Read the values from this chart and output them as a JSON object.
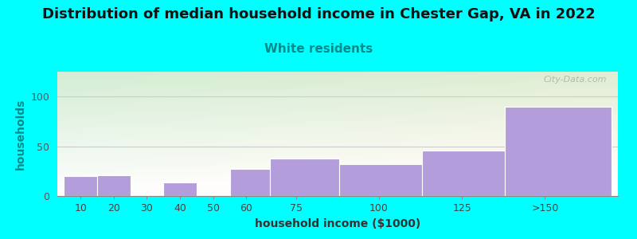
{
  "title": "Distribution of median household income in Chester Gap, VA in 2022",
  "subtitle": "White residents",
  "xlabel": "household income ($1000)",
  "ylabel": "households",
  "background_color": "#00FFFF",
  "bar_color": "#b39ddb",
  "categories": [
    "10",
    "20",
    "30",
    "40",
    "50",
    "60",
    "75",
    "100",
    "125",
    ">150"
  ],
  "values": [
    20,
    21,
    0,
    14,
    0,
    27,
    38,
    32,
    46,
    90
  ],
  "bar_lefts": [
    5,
    15,
    25,
    35,
    50,
    55,
    67,
    88,
    113,
    138
  ],
  "bar_rights": [
    15,
    25,
    35,
    45,
    55,
    67,
    88,
    113,
    138,
    170
  ],
  "xtick_positions": [
    10,
    20,
    30,
    40,
    50,
    60,
    75,
    100,
    125,
    150
  ],
  "xtick_labels": [
    "10",
    "20",
    "30",
    "40",
    "50",
    "60",
    "75",
    "100",
    "125",
    ">150"
  ],
  "yticks": [
    0,
    50,
    100
  ],
  "ylim": [
    0,
    125
  ],
  "xlim": [
    3,
    172
  ],
  "title_fontsize": 13,
  "subtitle_fontsize": 11,
  "subtitle_color": "#008B8B",
  "axis_label_fontsize": 10,
  "tick_fontsize": 9,
  "ylabel_color": "#008B8B",
  "xlabel_color": "#333333",
  "watermark": "City-Data.com"
}
